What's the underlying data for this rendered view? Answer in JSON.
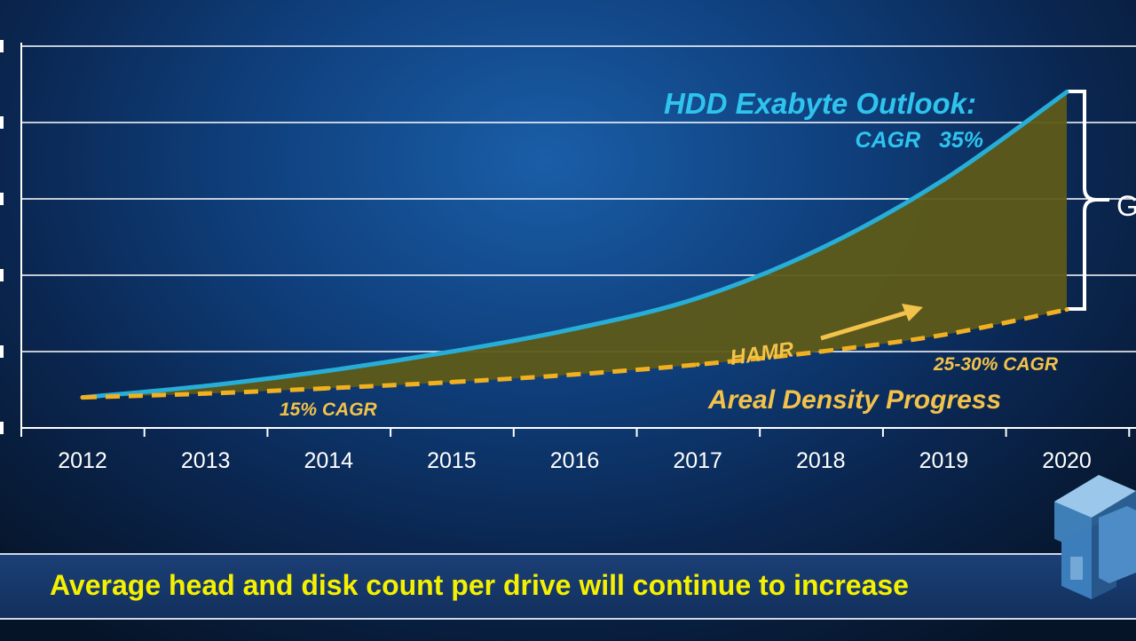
{
  "chart_data": {
    "type": "area",
    "categories": [
      "2012",
      "2013",
      "2014",
      "2015",
      "2016",
      "2017",
      "2018",
      "2019",
      "2020"
    ],
    "x": [
      2012,
      2013,
      2014,
      2015,
      2016,
      2017,
      2018,
      2019,
      2020
    ],
    "ylim": [
      0,
      5
    ],
    "grid": true,
    "series": [
      {
        "values": [
          0.4,
          0.55,
          0.75,
          1.0,
          1.3,
          1.7,
          2.35,
          3.25,
          4.4
        ],
        "color": "#27aed8",
        "style": "solid"
      },
      {
        "values": [
          0.4,
          0.45,
          0.52,
          0.6,
          0.7,
          0.83,
          1.0,
          1.22,
          1.55
        ],
        "color": "#f1b020",
        "style": "dashed"
      }
    ],
    "fill_between_color": "#5e5a18",
    "annotations": {
      "outlook_title": "HDD Exabyte Outlook:",
      "outlook_cagr": "CAGR   35%",
      "cagr_15": "15% CAGR",
      "hamr": "HAMR",
      "cagr_25_30": "25-30% CAGR",
      "areal_density": "Areal Density Progress",
      "gap_label_partial": "G"
    },
    "colors": {
      "outlook": "#2ec4ee",
      "density": "#f3c24a"
    }
  },
  "footer": {
    "text": "Average head and disk count per drive will continue to increase"
  },
  "logo": {
    "icon": "tt-logo-icon"
  }
}
